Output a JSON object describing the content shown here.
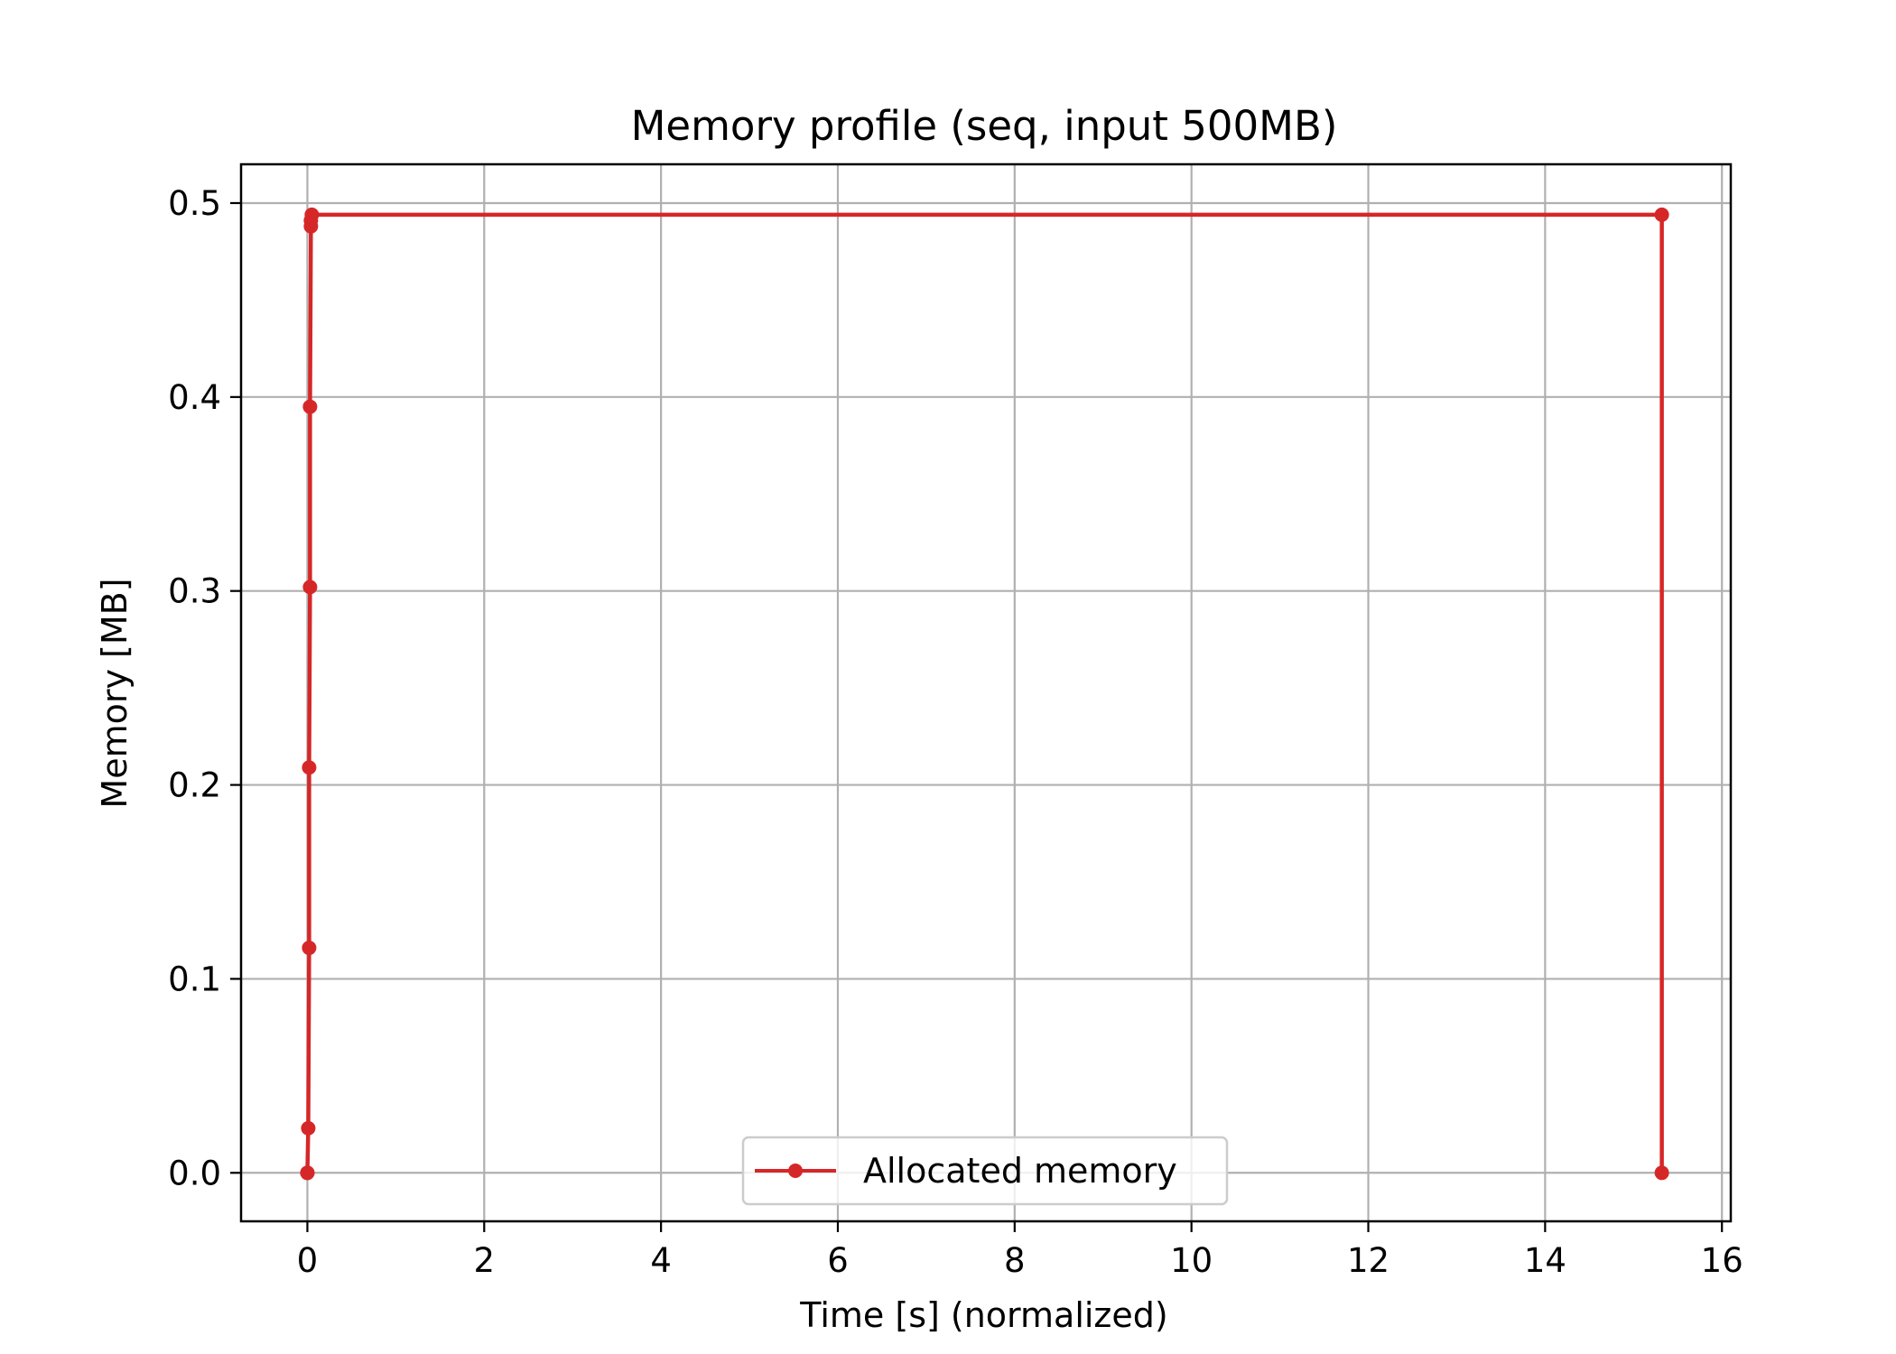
{
  "chart_data": {
    "type": "line",
    "title": "Memory profile (seq, input 500MB)",
    "xlabel": "Time [s] (normalized)",
    "ylabel": "Memory [MB]",
    "xlim": [
      -0.75,
      16.1
    ],
    "ylim": [
      -0.025,
      0.52
    ],
    "xticks": [
      0,
      2,
      4,
      6,
      8,
      10,
      12,
      14,
      16
    ],
    "yticks": [
      0.0,
      0.1,
      0.2,
      0.3,
      0.4,
      0.5
    ],
    "xtick_labels": [
      "0",
      "2",
      "4",
      "6",
      "8",
      "10",
      "12",
      "14",
      "16"
    ],
    "ytick_labels": [
      "0.0",
      "0.1",
      "0.2",
      "0.3",
      "0.4",
      "0.5"
    ],
    "grid": true,
    "legend_position": "bottom-center",
    "series": [
      {
        "name": "Allocated memory",
        "color": "#d62728",
        "marker": "circle",
        "x": [
          0.0,
          0.0,
          0.01,
          0.02,
          0.02,
          0.03,
          0.03,
          0.04,
          0.04,
          0.05,
          15.32,
          15.32
        ],
        "y": [
          0.0,
          0.0,
          0.023,
          0.116,
          0.209,
          0.302,
          0.395,
          0.488,
          0.491,
          0.494,
          0.494,
          0.0
        ]
      }
    ]
  }
}
